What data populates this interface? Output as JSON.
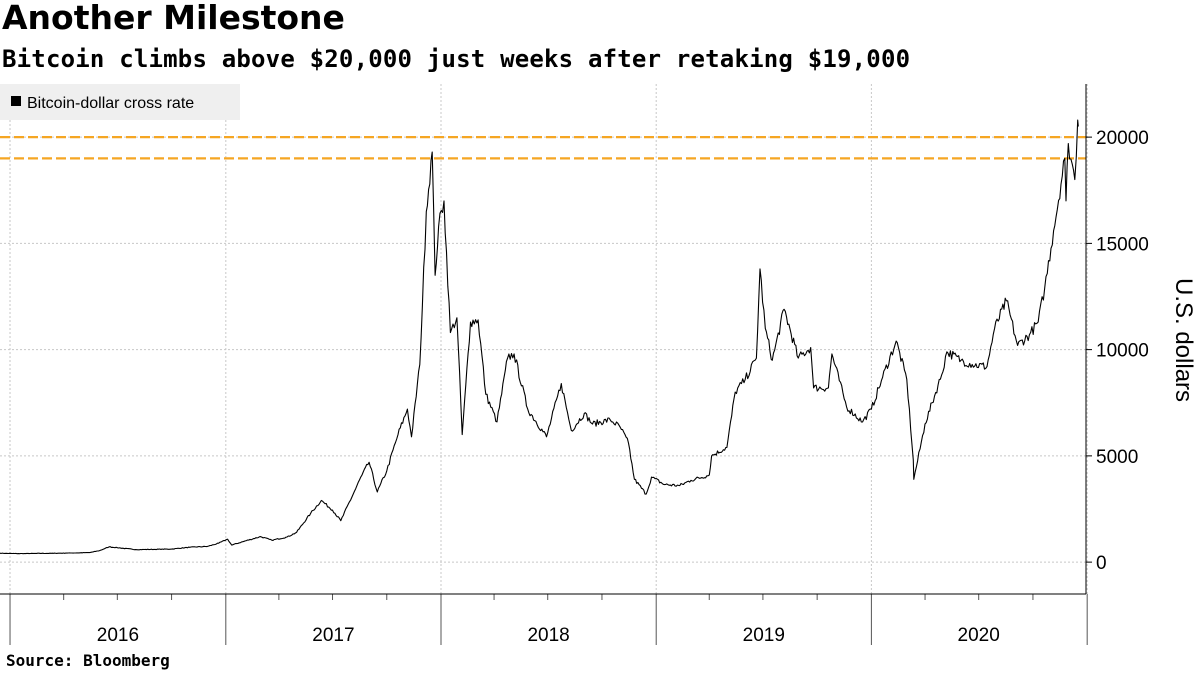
{
  "title": "Another Milestone",
  "subtitle": "Bitcoin climbs above $20,000 just weeks after retaking $19,000",
  "source": "Source: Bloomberg",
  "chart_data": {
    "type": "line",
    "ylabel": "U.S. dollars",
    "ylim": [
      -1500,
      22500
    ],
    "y_ticks": [
      0,
      5000,
      10000,
      15000,
      20000
    ],
    "y_tick_labels": [
      "0",
      "5000",
      "10000",
      "15000",
      "20000"
    ],
    "x_range": [
      "2015-12-15",
      "2020-12-30"
    ],
    "x_labels": [
      "2016",
      "2017",
      "2018",
      "2019",
      "2020"
    ],
    "reference_lines": [
      20000,
      19000
    ],
    "colors": {
      "series": "#000000",
      "reference": "#f5a623",
      "grid": "#c8c8c8",
      "legend_bg": "#efefef"
    },
    "legend_position": "top-left",
    "grid": true,
    "series": [
      {
        "name": "Bitcoin-dollar cross rate",
        "points": [
          [
            "2015-12-15",
            420
          ],
          [
            "2016-01-15",
            400
          ],
          [
            "2016-02-15",
            410
          ],
          [
            "2016-03-15",
            415
          ],
          [
            "2016-04-15",
            430
          ],
          [
            "2016-05-15",
            450
          ],
          [
            "2016-06-01",
            540
          ],
          [
            "2016-06-17",
            720
          ],
          [
            "2016-07-01",
            680
          ],
          [
            "2016-08-01",
            590
          ],
          [
            "2016-09-01",
            600
          ],
          [
            "2016-10-01",
            615
          ],
          [
            "2016-11-01",
            700
          ],
          [
            "2016-12-01",
            740
          ],
          [
            "2016-12-20",
            890
          ],
          [
            "2017-01-04",
            1080
          ],
          [
            "2017-01-11",
            800
          ],
          [
            "2017-02-01",
            980
          ],
          [
            "2017-03-01",
            1200
          ],
          [
            "2017-03-20",
            1030
          ],
          [
            "2017-04-15",
            1180
          ],
          [
            "2017-05-01",
            1400
          ],
          [
            "2017-05-25",
            2300
          ],
          [
            "2017-06-12",
            2900
          ],
          [
            "2017-07-01",
            2450
          ],
          [
            "2017-07-15",
            1950
          ],
          [
            "2017-08-05",
            3200
          ],
          [
            "2017-08-20",
            4100
          ],
          [
            "2017-09-01",
            4700
          ],
          [
            "2017-09-15",
            3300
          ],
          [
            "2017-10-01",
            4300
          ],
          [
            "2017-10-20",
            6000
          ],
          [
            "2017-11-05",
            7200
          ],
          [
            "2017-11-12",
            5900
          ],
          [
            "2017-11-26",
            9300
          ],
          [
            "2017-12-07",
            16500
          ],
          [
            "2017-12-17",
            19300
          ],
          [
            "2017-12-22",
            13500
          ],
          [
            "2017-12-28",
            15800
          ],
          [
            "2018-01-06",
            17000
          ],
          [
            "2018-01-17",
            10800
          ],
          [
            "2018-01-28",
            11500
          ],
          [
            "2018-02-06",
            6000
          ],
          [
            "2018-02-20",
            11300
          ],
          [
            "2018-03-05",
            11400
          ],
          [
            "2018-03-18",
            7900
          ],
          [
            "2018-04-06",
            6600
          ],
          [
            "2018-04-24",
            9600
          ],
          [
            "2018-05-05",
            9800
          ],
          [
            "2018-05-28",
            7200
          ],
          [
            "2018-06-29",
            5900
          ],
          [
            "2018-07-24",
            8400
          ],
          [
            "2018-08-10",
            6200
          ],
          [
            "2018-09-01",
            7000
          ],
          [
            "2018-09-15",
            6500
          ],
          [
            "2018-10-15",
            6700
          ],
          [
            "2018-11-01",
            6350
          ],
          [
            "2018-11-15",
            5600
          ],
          [
            "2018-11-25",
            3900
          ],
          [
            "2018-12-15",
            3200
          ],
          [
            "2018-12-24",
            4000
          ],
          [
            "2019-01-15",
            3650
          ],
          [
            "2019-02-10",
            3600
          ],
          [
            "2019-03-01",
            3850
          ],
          [
            "2019-04-01",
            4100
          ],
          [
            "2019-04-05",
            5000
          ],
          [
            "2019-05-01",
            5400
          ],
          [
            "2019-05-15",
            8000
          ],
          [
            "2019-06-01",
            8600
          ],
          [
            "2019-06-20",
            9600
          ],
          [
            "2019-06-26",
            13800
          ],
          [
            "2019-07-05",
            11000
          ],
          [
            "2019-07-17",
            9500
          ],
          [
            "2019-08-06",
            11900
          ],
          [
            "2019-08-30",
            9600
          ],
          [
            "2019-09-20",
            10100
          ],
          [
            "2019-09-25",
            8200
          ],
          [
            "2019-10-20",
            8200
          ],
          [
            "2019-10-26",
            9800
          ],
          [
            "2019-11-20",
            7300
          ],
          [
            "2019-12-17",
            6600
          ],
          [
            "2020-01-01",
            7200
          ],
          [
            "2020-01-20",
            8700
          ],
          [
            "2020-02-12",
            10400
          ],
          [
            "2020-03-01",
            8600
          ],
          [
            "2020-03-12",
            4800
          ],
          [
            "2020-03-13",
            3900
          ],
          [
            "2020-04-01",
            6500
          ],
          [
            "2020-04-29",
            8800
          ],
          [
            "2020-05-08",
            9900
          ],
          [
            "2020-06-01",
            9500
          ],
          [
            "2020-06-20",
            9300
          ],
          [
            "2020-07-15",
            9200
          ],
          [
            "2020-07-28",
            11000
          ],
          [
            "2020-08-17",
            12300
          ],
          [
            "2020-09-05",
            10200
          ],
          [
            "2020-09-25",
            10700
          ],
          [
            "2020-10-10",
            11300
          ],
          [
            "2020-10-21",
            12900
          ],
          [
            "2020-11-05",
            15600
          ],
          [
            "2020-11-24",
            19000
          ],
          [
            "2020-11-26",
            17000
          ],
          [
            "2020-11-30",
            19700
          ],
          [
            "2020-12-11",
            18000
          ],
          [
            "2020-12-16",
            20800
          ],
          [
            "2020-12-17",
            20500
          ]
        ]
      }
    ]
  }
}
